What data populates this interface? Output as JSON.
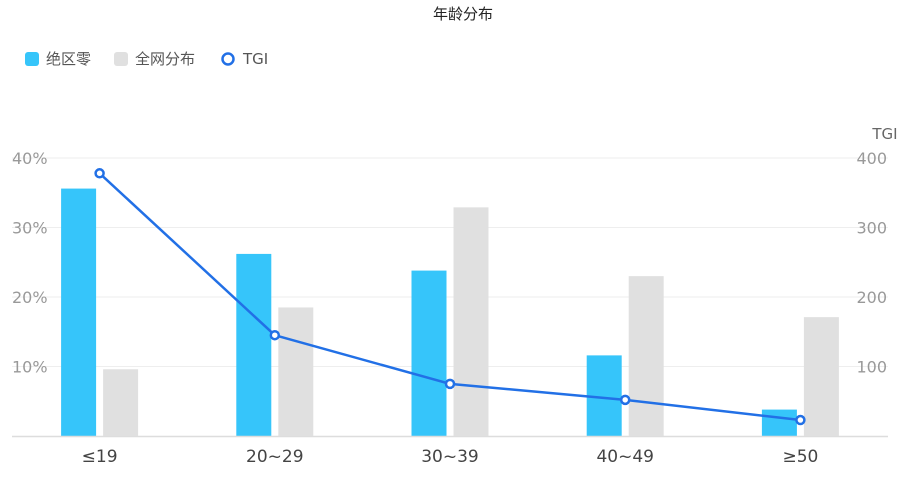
{
  "chart_data": {
    "type": "bar",
    "title": "年龄分布",
    "categories": [
      "≤19",
      "20~29",
      "30~39",
      "40~49",
      "≥50"
    ],
    "series": [
      {
        "name": "绝区零",
        "kind": "bar",
        "axis": "left",
        "color": "#36c5fa",
        "values": [
          35.6,
          26.2,
          23.8,
          11.6,
          3.8
        ]
      },
      {
        "name": "全网分布",
        "kind": "bar",
        "axis": "left",
        "color": "#e0e0e0",
        "values": [
          9.6,
          18.5,
          32.9,
          23.0,
          17.1
        ]
      },
      {
        "name": "TGI",
        "kind": "line",
        "axis": "right",
        "color": "#2270e6",
        "values": [
          378,
          145,
          75,
          52,
          23
        ]
      }
    ],
    "y_left": {
      "ylim": [
        0,
        40
      ],
      "ticks": [
        "10%",
        "20%",
        "30%",
        "40%"
      ]
    },
    "y_right": {
      "label": "TGI",
      "ylim": [
        0,
        400
      ],
      "ticks": [
        "100",
        "200",
        "300",
        "400"
      ]
    },
    "legend": "top-left",
    "grid": true
  }
}
